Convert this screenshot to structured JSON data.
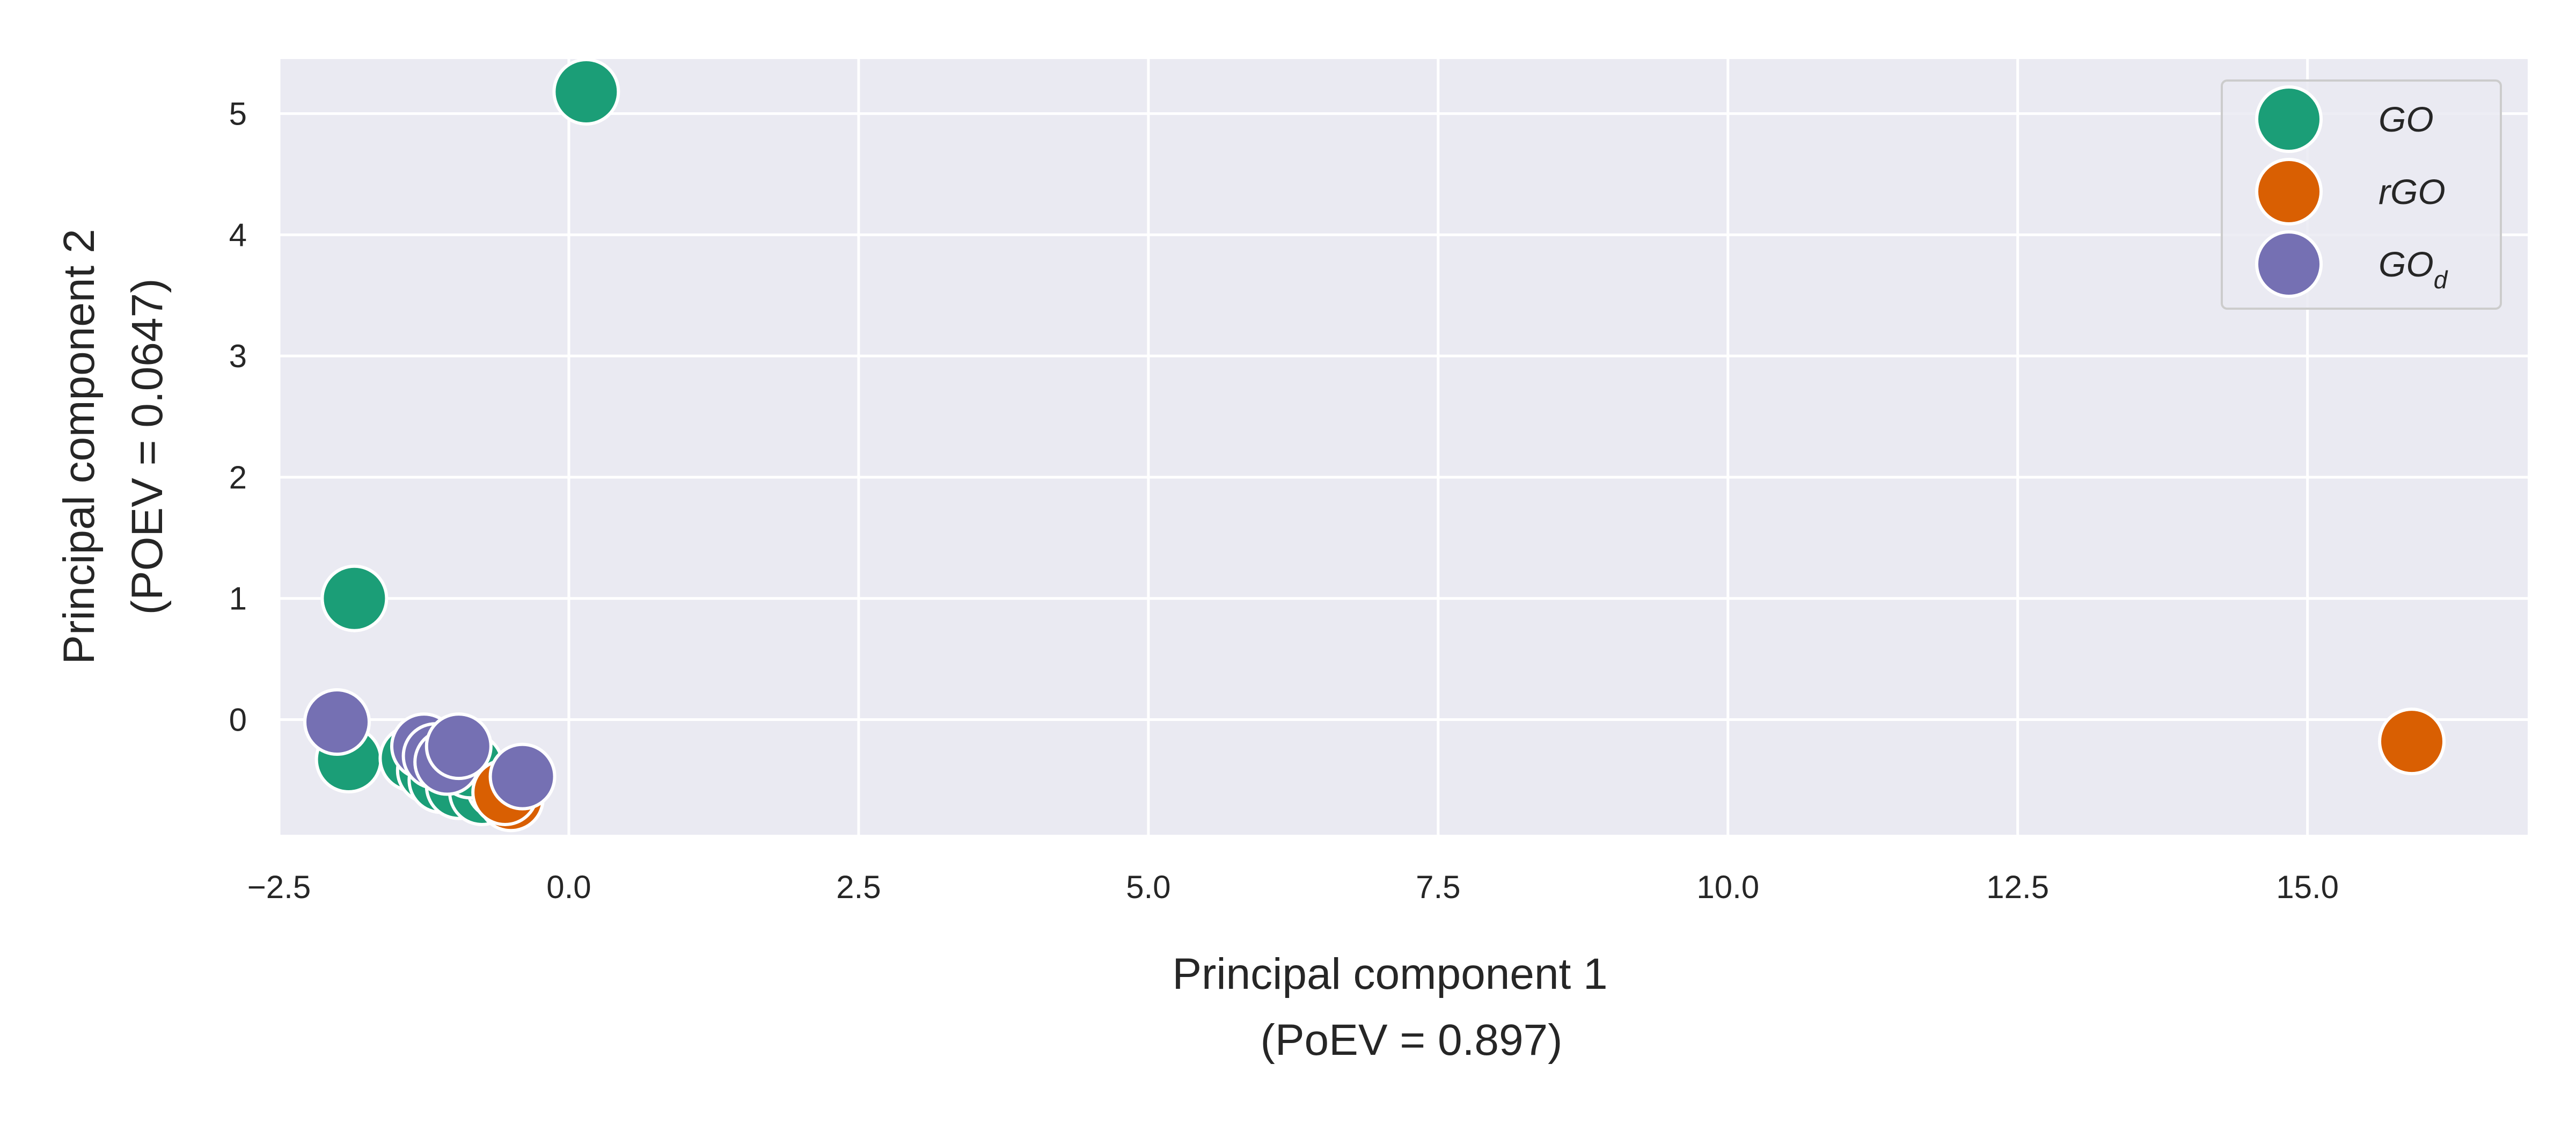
{
  "chart_data": {
    "type": "scatter",
    "xlabel_lines": [
      "Principal component 1",
      "(PoEV = 0.897)"
    ],
    "ylabel_lines": [
      "Principal component 2",
      "(POEV = 0.0647)"
    ],
    "xlim": [
      -2.5,
      16.9
    ],
    "ylim": [
      -0.95,
      5.45
    ],
    "xticks": [
      -2.5,
      0.0,
      2.5,
      5.0,
      7.5,
      10.0,
      12.5,
      15.0
    ],
    "xtick_labels": [
      "−2.5",
      "0.0",
      "2.5",
      "5.0",
      "7.5",
      "10.0",
      "12.5",
      "15.0"
    ],
    "yticks": [
      0,
      1,
      2,
      3,
      4,
      5
    ],
    "ytick_labels": [
      "0",
      "1",
      "2",
      "3",
      "4",
      "5"
    ],
    "grid": true,
    "legend_position": "top-right",
    "series": [
      {
        "name": "GO",
        "legend_main": "GO",
        "legend_sub": "",
        "color": "#1b9e77",
        "points": [
          [
            0.15,
            5.18
          ],
          [
            -1.85,
            1.0
          ],
          [
            -1.9,
            -0.33
          ],
          [
            -1.35,
            -0.32
          ],
          [
            -1.2,
            -0.42
          ],
          [
            -1.1,
            -0.5
          ],
          [
            -0.95,
            -0.55
          ],
          [
            -0.75,
            -0.6
          ],
          [
            -0.6,
            -0.55
          ],
          [
            -0.85,
            -0.38
          ]
        ]
      },
      {
        "name": "rGO",
        "legend_main": "rGO",
        "legend_sub": "",
        "color": "#d95f02",
        "points": [
          [
            15.9,
            -0.18
          ],
          [
            -0.5,
            -0.65
          ],
          [
            -0.55,
            -0.6
          ]
        ]
      },
      {
        "name": "GOd",
        "legend_main": "GO",
        "legend_sub": "d",
        "color": "#7570b3",
        "points": [
          [
            -2.0,
            -0.02
          ],
          [
            -1.25,
            -0.22
          ],
          [
            -1.15,
            -0.3
          ],
          [
            -1.05,
            -0.35
          ],
          [
            -0.95,
            -0.22
          ],
          [
            -0.4,
            -0.47
          ]
        ]
      }
    ]
  }
}
